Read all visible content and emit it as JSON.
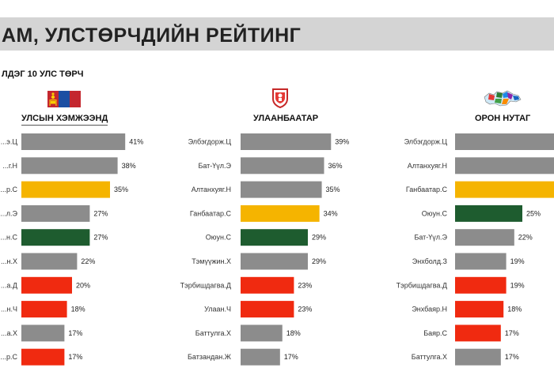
{
  "header": {
    "title": "АМ, УЛСТӨРЧДИЙН РЕЙТИНГ",
    "subtitle": "ЛДЭГ 10 УЛС ТӨРЧ"
  },
  "colors": {
    "gray": "#8c8c8c",
    "yellow": "#f5b400",
    "green": "#1e5c2f",
    "red": "#f02a10",
    "banner": "#d4d4d4"
  },
  "chart_data": [
    {
      "type": "bar",
      "orientation": "horizontal",
      "title": "УЛСЫН ХЭМЖЭЭНД",
      "emblem_icon": "mongolia-flag-icon",
      "categories": [
        "...э.Ц",
        "...г.Н",
        "...р.С",
        "...л.Э",
        "...н.С",
        "...н.Х",
        "...а.Д",
        "...н.Ч",
        "...а.Х",
        "...р.С"
      ],
      "values": [
        41,
        38,
        35,
        27,
        27,
        22,
        20,
        18,
        17,
        17
      ],
      "labels": [
        "41%",
        "38%",
        "35%",
        "27%",
        "27%",
        "22%",
        "20%",
        "18%",
        "17%",
        "17%"
      ],
      "bar_colors": [
        "gray",
        "gray",
        "yellow",
        "gray",
        "green",
        "gray",
        "red",
        "red",
        "gray",
        "red"
      ],
      "unit": "%"
    },
    {
      "type": "bar",
      "orientation": "horizontal",
      "title": "УЛААНБААТАР",
      "emblem_icon": "ulaanbaatar-emblem-icon",
      "categories": [
        "Элбэгдорж.Ц",
        "Бат-Үүл.Э",
        "Алтанхуяг.Н",
        "Ганбаатар.С",
        "Оюун.С",
        "Тэмүүжин.Х",
        "Тэрбишдагва.Д",
        "Улаан.Ч",
        "Баттулга.Х",
        "Батзандан.Ж"
      ],
      "values": [
        39,
        36,
        35,
        34,
        29,
        29,
        23,
        23,
        18,
        17
      ],
      "labels": [
        "39%",
        "36%",
        "35%",
        "34%",
        "29%",
        "29%",
        "23%",
        "23%",
        "18%",
        "17%"
      ],
      "bar_colors": [
        "gray",
        "gray",
        "gray",
        "yellow",
        "green",
        "gray",
        "red",
        "red",
        "gray",
        "gray"
      ],
      "unit": "%"
    },
    {
      "type": "bar",
      "orientation": "horizontal",
      "title": "ОРОН НУТАГ",
      "emblem_icon": "mongolia-map-icon",
      "categories": [
        "Элбэгдорж.Ц",
        "Алтанхуяг.Н",
        "Ганбаатар.С",
        "Оюун.С",
        "Бат-Үүл.Э",
        "Энхболд.З",
        "Тэрбишдагва.Д",
        "Энхбаяр.Н",
        "Баяр.С",
        "Баттулга.Х"
      ],
      "values": [
        null,
        null,
        null,
        25,
        22,
        19,
        19,
        18,
        17,
        17
      ],
      "labels": [
        "",
        "",
        "",
        "25%",
        "22%",
        "19%",
        "19%",
        "18%",
        "17%",
        "17%"
      ],
      "bar_colors": [
        "gray",
        "gray",
        "yellow",
        "green",
        "gray",
        "gray",
        "red",
        "red",
        "red",
        "gray"
      ],
      "unit": "%"
    }
  ]
}
